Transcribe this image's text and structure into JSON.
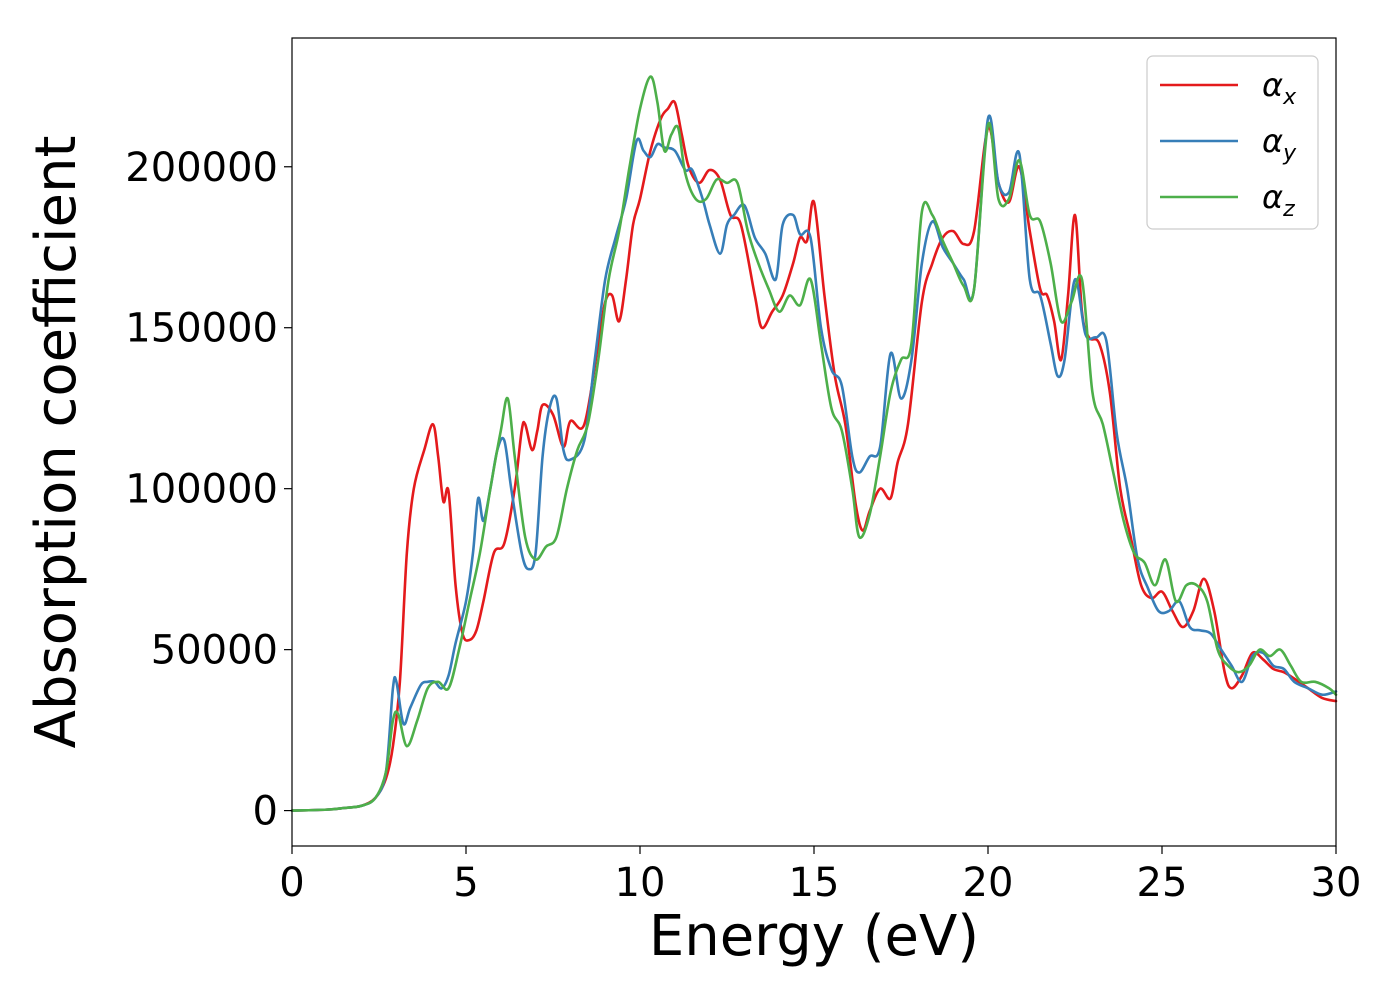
{
  "chart_data": {
    "type": "line",
    "title": "",
    "xlabel": "Energy (eV)",
    "ylabel": "Absorption coefficient",
    "xlim": [
      0,
      30
    ],
    "ylim": [
      -11000,
      240000
    ],
    "xticks": [
      0,
      5,
      10,
      15,
      20,
      25,
      30
    ],
    "xtick_labels": [
      "0",
      "5",
      "10",
      "15",
      "20",
      "25",
      "30"
    ],
    "yticks": [
      0,
      50000,
      100000,
      150000,
      200000
    ],
    "ytick_labels": [
      "0",
      "50000",
      "100000",
      "150000",
      "200000"
    ],
    "grid": false,
    "legend_position": "top-right",
    "series": [
      {
        "name": "αx",
        "legend_main": "α",
        "legend_sub": "x",
        "color": "#e41a1c",
        "x": [
          0,
          1,
          1.5,
          2,
          2.4,
          2.7,
          2.9,
          3.1,
          3.3,
          3.5,
          3.8,
          4.05,
          4.2,
          4.35,
          4.5,
          4.7,
          4.9,
          5.1,
          5.3,
          5.5,
          5.8,
          6.1,
          6.4,
          6.6,
          6.7,
          6.9,
          7.05,
          7.2,
          7.5,
          7.8,
          8.0,
          8.4,
          8.8,
          9.0,
          9.2,
          9.4,
          9.6,
          9.8,
          10,
          10.3,
          10.6,
          10.8,
          11.0,
          11.2,
          11.4,
          11.7,
          12.0,
          12.3,
          12.6,
          12.9,
          13.3,
          13.5,
          13.8,
          14.1,
          14.4,
          14.6,
          14.8,
          15.0,
          15.3,
          15.6,
          15.9,
          16.2,
          16.4,
          16.6,
          16.9,
          17.2,
          17.4,
          17.7,
          18.1,
          18.4,
          18.7,
          19.0,
          19.3,
          19.6,
          20.0,
          20.3,
          20.6,
          20.9,
          21.2,
          21.5,
          21.7,
          21.9,
          22.1,
          22.3,
          22.5,
          22.7,
          22.9,
          23.2,
          23.5,
          23.8,
          24.1,
          24.4,
          24.7,
          25.0,
          25.3,
          25.6,
          25.9,
          26.2,
          26.5,
          26.8,
          27.0,
          27.3,
          27.6,
          27.9,
          28.2,
          28.5,
          28.8,
          29.2,
          29.6,
          30.0
        ],
        "y": [
          0,
          300,
          800,
          1500,
          4000,
          10000,
          20000,
          40000,
          80000,
          100000,
          112000,
          120000,
          110000,
          96000,
          99000,
          70000,
          55000,
          53000,
          56000,
          65000,
          80000,
          83000,
          100000,
          118000,
          120000,
          112000,
          118000,
          126000,
          123000,
          113000,
          121000,
          120000,
          145000,
          158000,
          160000,
          152000,
          165000,
          182000,
          190000,
          205000,
          215000,
          218000,
          220000,
          210000,
          200000,
          195000,
          199000,
          196000,
          185000,
          182000,
          160000,
          150000,
          155000,
          160000,
          170000,
          178000,
          177000,
          189000,
          160000,
          135000,
          120000,
          95000,
          87000,
          93000,
          100000,
          97000,
          108000,
          120000,
          158000,
          170000,
          178000,
          180000,
          176000,
          180000,
          212000,
          195000,
          189000,
          200000,
          180000,
          162000,
          160000,
          152000,
          140000,
          160000,
          185000,
          155000,
          147000,
          145000,
          130000,
          100000,
          85000,
          70000,
          66000,
          68000,
          62000,
          57000,
          62000,
          72000,
          62000,
          43000,
          38000,
          42000,
          49000,
          47000,
          44000,
          43000,
          41000,
          38000,
          35000,
          34000
        ]
      },
      {
        "name": "αy",
        "legend_main": "α",
        "legend_sub": "y",
        "color": "#377eb8",
        "x": [
          0,
          1,
          1.5,
          2,
          2.4,
          2.7,
          2.9,
          3.0,
          3.2,
          3.4,
          3.7,
          3.9,
          4.1,
          4.3,
          4.5,
          4.7,
          5.0,
          5.2,
          5.35,
          5.5,
          5.7,
          5.9,
          6.1,
          6.3,
          6.6,
          6.8,
          7.0,
          7.2,
          7.4,
          7.6,
          7.8,
          8.0,
          8.4,
          8.7,
          9.0,
          9.3,
          9.6,
          9.9,
          10.1,
          10.3,
          10.5,
          10.7,
          11.0,
          11.3,
          11.5,
          11.8,
          12.0,
          12.3,
          12.5,
          12.7,
          13.0,
          13.3,
          13.6,
          13.9,
          14.1,
          14.4,
          14.6,
          14.9,
          15.2,
          15.5,
          15.8,
          16.1,
          16.3,
          16.6,
          16.9,
          17.2,
          17.5,
          17.8,
          18.1,
          18.4,
          18.7,
          19.0,
          19.3,
          19.6,
          20.0,
          20.3,
          20.6,
          20.9,
          21.2,
          21.5,
          21.8,
          22.0,
          22.2,
          22.5,
          22.8,
          23.1,
          23.4,
          23.7,
          24.0,
          24.3,
          24.6,
          24.9,
          25.2,
          25.5,
          25.8,
          26.1,
          26.4,
          26.7,
          27.0,
          27.3,
          27.6,
          27.9,
          28.2,
          28.5,
          28.8,
          29.2,
          29.6,
          30.0
        ],
        "y": [
          0,
          300,
          800,
          1500,
          4000,
          12000,
          38000,
          40000,
          27000,
          32000,
          39000,
          40000,
          40000,
          38000,
          42000,
          52000,
          65000,
          80000,
          97000,
          90000,
          100000,
          112000,
          115000,
          100000,
          80000,
          75000,
          80000,
          110000,
          125000,
          128000,
          112000,
          109000,
          115000,
          140000,
          165000,
          178000,
          190000,
          208000,
          205000,
          203000,
          207000,
          206000,
          205000,
          199000,
          199000,
          190000,
          182000,
          173000,
          182000,
          185000,
          188000,
          178000,
          173000,
          165000,
          182000,
          185000,
          179000,
          178000,
          150000,
          137000,
          132000,
          110000,
          105000,
          110000,
          113000,
          142000,
          128000,
          140000,
          170000,
          183000,
          175000,
          170000,
          165000,
          162000,
          215000,
          195000,
          192000,
          204000,
          165000,
          160000,
          145000,
          135000,
          140000,
          165000,
          148000,
          147000,
          146000,
          117000,
          100000,
          78000,
          69000,
          62000,
          62000,
          65000,
          57000,
          56000,
          55000,
          50000,
          45000,
          40000,
          48000,
          49000,
          45000,
          44000,
          40000,
          38000,
          36000,
          37000
        ]
      },
      {
        "name": "αz",
        "legend_main": "α",
        "legend_sub": "z",
        "color": "#4daf4a",
        "x": [
          0,
          1,
          1.5,
          2,
          2.4,
          2.7,
          2.9,
          3.05,
          3.3,
          3.6,
          3.9,
          4.2,
          4.5,
          4.8,
          5.1,
          5.4,
          5.7,
          6.0,
          6.2,
          6.4,
          6.7,
          7.0,
          7.3,
          7.6,
          7.9,
          8.2,
          8.5,
          8.8,
          9.1,
          9.4,
          9.7,
          10.0,
          10.3,
          10.5,
          10.7,
          10.9,
          11.1,
          11.3,
          11.6,
          11.9,
          12.2,
          12.5,
          12.8,
          13.1,
          13.4,
          13.7,
          14.0,
          14.3,
          14.6,
          14.9,
          15.2,
          15.5,
          15.8,
          16.1,
          16.3,
          16.6,
          16.9,
          17.2,
          17.5,
          17.8,
          18.1,
          18.4,
          18.7,
          19.0,
          19.3,
          19.6,
          20.0,
          20.3,
          20.6,
          20.9,
          21.2,
          21.5,
          21.8,
          22.1,
          22.4,
          22.7,
          23.0,
          23.3,
          23.6,
          23.9,
          24.2,
          24.5,
          24.8,
          25.1,
          25.4,
          25.7,
          26.0,
          26.3,
          26.6,
          26.9,
          27.2,
          27.5,
          27.8,
          28.1,
          28.4,
          28.7,
          29.0,
          29.4,
          29.8,
          30.0
        ],
        "y": [
          0,
          300,
          800,
          1500,
          4000,
          12000,
          28000,
          30000,
          20000,
          28000,
          38000,
          40000,
          38000,
          50000,
          65000,
          80000,
          100000,
          118000,
          128000,
          110000,
          85000,
          78000,
          82000,
          85000,
          100000,
          112000,
          120000,
          140000,
          165000,
          180000,
          200000,
          218000,
          228000,
          220000,
          205000,
          210000,
          212000,
          198000,
          190000,
          190000,
          196000,
          195000,
          195000,
          180000,
          170000,
          162000,
          155000,
          160000,
          157000,
          165000,
          145000,
          125000,
          118000,
          100000,
          85000,
          92000,
          110000,
          130000,
          140000,
          145000,
          186000,
          185000,
          177000,
          170000,
          163000,
          162000,
          213000,
          190000,
          190000,
          202000,
          185000,
          183000,
          170000,
          152000,
          158000,
          165000,
          130000,
          120000,
          105000,
          90000,
          80000,
          77000,
          70000,
          78000,
          65000,
          70000,
          70000,
          65000,
          50000,
          45000,
          43000,
          45000,
          50000,
          48000,
          50000,
          45000,
          40000,
          40000,
          38000,
          36000
        ]
      }
    ]
  }
}
